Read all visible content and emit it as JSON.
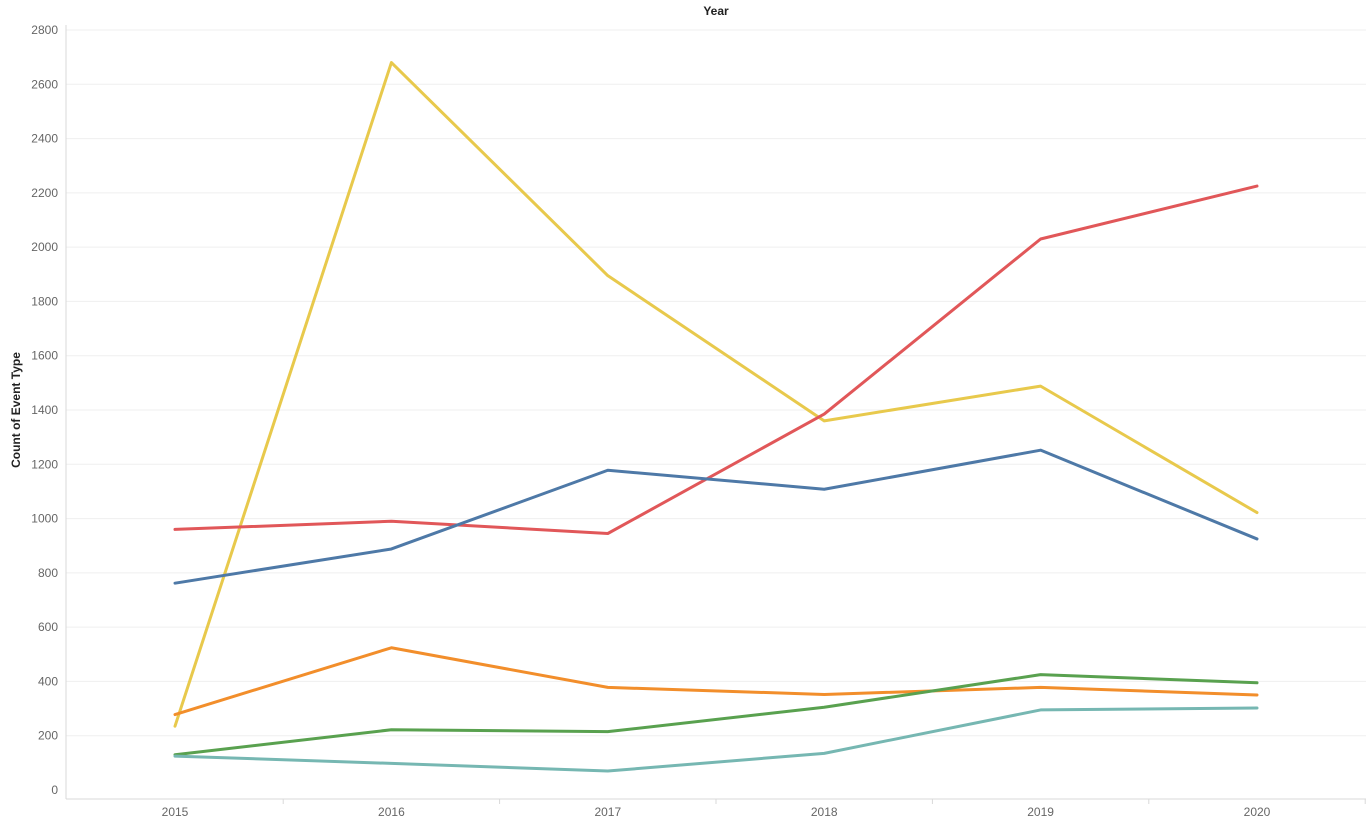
{
  "chart_data": {
    "type": "line",
    "title": "",
    "xlabel": "Year",
    "ylabel": "Count of Event Type",
    "categories": [
      "2015",
      "2016",
      "2017",
      "2018",
      "2019",
      "2020"
    ],
    "ylim": [
      0,
      2800
    ],
    "yticks": [
      0,
      200,
      400,
      600,
      800,
      1000,
      1200,
      1400,
      1600,
      1800,
      2000,
      2200,
      2400,
      2600,
      2800
    ],
    "grid": true,
    "legend": "none",
    "series": [
      {
        "color": "#e8c94c",
        "values": [
          235,
          2680,
          1895,
          1360,
          1488,
          1022
        ]
      },
      {
        "color": "#e15759",
        "values": [
          960,
          990,
          945,
          1385,
          2030,
          2225
        ]
      },
      {
        "color": "#4e79a7",
        "values": [
          762,
          888,
          1178,
          1108,
          1252,
          925
        ]
      },
      {
        "color": "#f28e2b",
        "values": [
          278,
          524,
          378,
          352,
          378,
          350
        ]
      },
      {
        "color": "#59a14f",
        "values": [
          130,
          222,
          215,
          305,
          425,
          395
        ]
      },
      {
        "color": "#76b7b2",
        "values": [
          125,
          98,
          70,
          135,
          295,
          302
        ]
      }
    ]
  }
}
